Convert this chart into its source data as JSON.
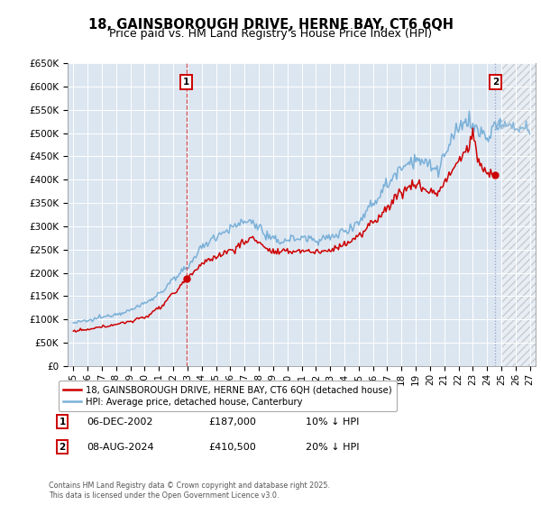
{
  "title": "18, GAINSBOROUGH DRIVE, HERNE BAY, CT6 6QH",
  "subtitle": "Price paid vs. HM Land Registry's House Price Index (HPI)",
  "ylim": [
    0,
    650000
  ],
  "yticks": [
    0,
    50000,
    100000,
    150000,
    200000,
    250000,
    300000,
    350000,
    400000,
    450000,
    500000,
    550000,
    600000,
    650000
  ],
  "ytick_labels": [
    "£0",
    "£50K",
    "£100K",
    "£150K",
    "£200K",
    "£250K",
    "£300K",
    "£350K",
    "£400K",
    "£450K",
    "£500K",
    "£550K",
    "£600K",
    "£650K"
  ],
  "xlim_start": 1994.6,
  "xlim_end": 2027.4,
  "plot_bg_color": "#dce6f1",
  "hpi_color": "#7ab0d8",
  "price_color": "#cc0000",
  "marker1_date": "06-DEC-2002",
  "marker1_price": 187000,
  "marker1_hpi_note": "10% ↓ HPI",
  "marker2_date": "08-AUG-2024",
  "marker2_price": 410500,
  "marker2_hpi_note": "20% ↓ HPI",
  "marker1_x": 2002.92,
  "marker2_x": 2024.58,
  "legend_label_red": "18, GAINSBOROUGH DRIVE, HERNE BAY, CT6 6QH (detached house)",
  "legend_label_blue": "HPI: Average price, detached house, Canterbury",
  "footer": "Contains HM Land Registry data © Crown copyright and database right 2025.\nThis data is licensed under the Open Government Licence v3.0.",
  "future_cutoff_x": 2025.08,
  "hpi_key_points_x": [
    1995.0,
    1996.0,
    1997.0,
    1998.0,
    1999.0,
    2000.0,
    2001.0,
    2002.0,
    2002.92,
    2003.5,
    2004.0,
    2005.0,
    2006.0,
    2007.0,
    2007.5,
    2008.0,
    2008.5,
    2009.0,
    2009.5,
    2010.0,
    2011.0,
    2012.0,
    2013.0,
    2014.0,
    2015.0,
    2016.0,
    2017.0,
    2018.0,
    2019.0,
    2020.0,
    2020.5,
    2021.0,
    2021.5,
    2022.0,
    2022.5,
    2023.0,
    2023.5,
    2024.0,
    2024.58,
    2025.0,
    2025.5,
    2026.0,
    2027.0
  ],
  "hpi_key_points_y": [
    93000,
    97000,
    105000,
    112000,
    120000,
    135000,
    155000,
    185000,
    208000,
    235000,
    255000,
    280000,
    295000,
    310000,
    310000,
    300000,
    280000,
    270000,
    268000,
    272000,
    275000,
    272000,
    275000,
    290000,
    310000,
    350000,
    390000,
    430000,
    445000,
    430000,
    420000,
    450000,
    480000,
    510000,
    530000,
    515000,
    500000,
    490000,
    513000,
    520000,
    515000,
    510000,
    510000
  ],
  "price_key_points_x": [
    1995.0,
    1996.0,
    1997.0,
    1998.0,
    1999.0,
    2000.0,
    2001.0,
    2002.0,
    2002.92,
    2003.5,
    2004.0,
    2005.0,
    2006.0,
    2007.0,
    2007.5,
    2008.0,
    2008.5,
    2009.0,
    2009.5,
    2010.0,
    2011.0,
    2012.0,
    2013.0,
    2014.0,
    2015.0,
    2016.0,
    2017.0,
    2018.0,
    2019.0,
    2020.0,
    2020.5,
    2021.0,
    2021.5,
    2022.0,
    2022.5,
    2023.0,
    2023.5,
    2024.0,
    2024.58
  ],
  "price_key_points_y": [
    75000,
    78000,
    84000,
    90000,
    96000,
    105000,
    125000,
    155000,
    187000,
    205000,
    218000,
    235000,
    248000,
    265000,
    275000,
    268000,
    252000,
    245000,
    243000,
    246000,
    248000,
    245000,
    248000,
    262000,
    278000,
    308000,
    340000,
    375000,
    390000,
    375000,
    370000,
    395000,
    415000,
    440000,
    460000,
    495000,
    430000,
    415000,
    410500
  ]
}
